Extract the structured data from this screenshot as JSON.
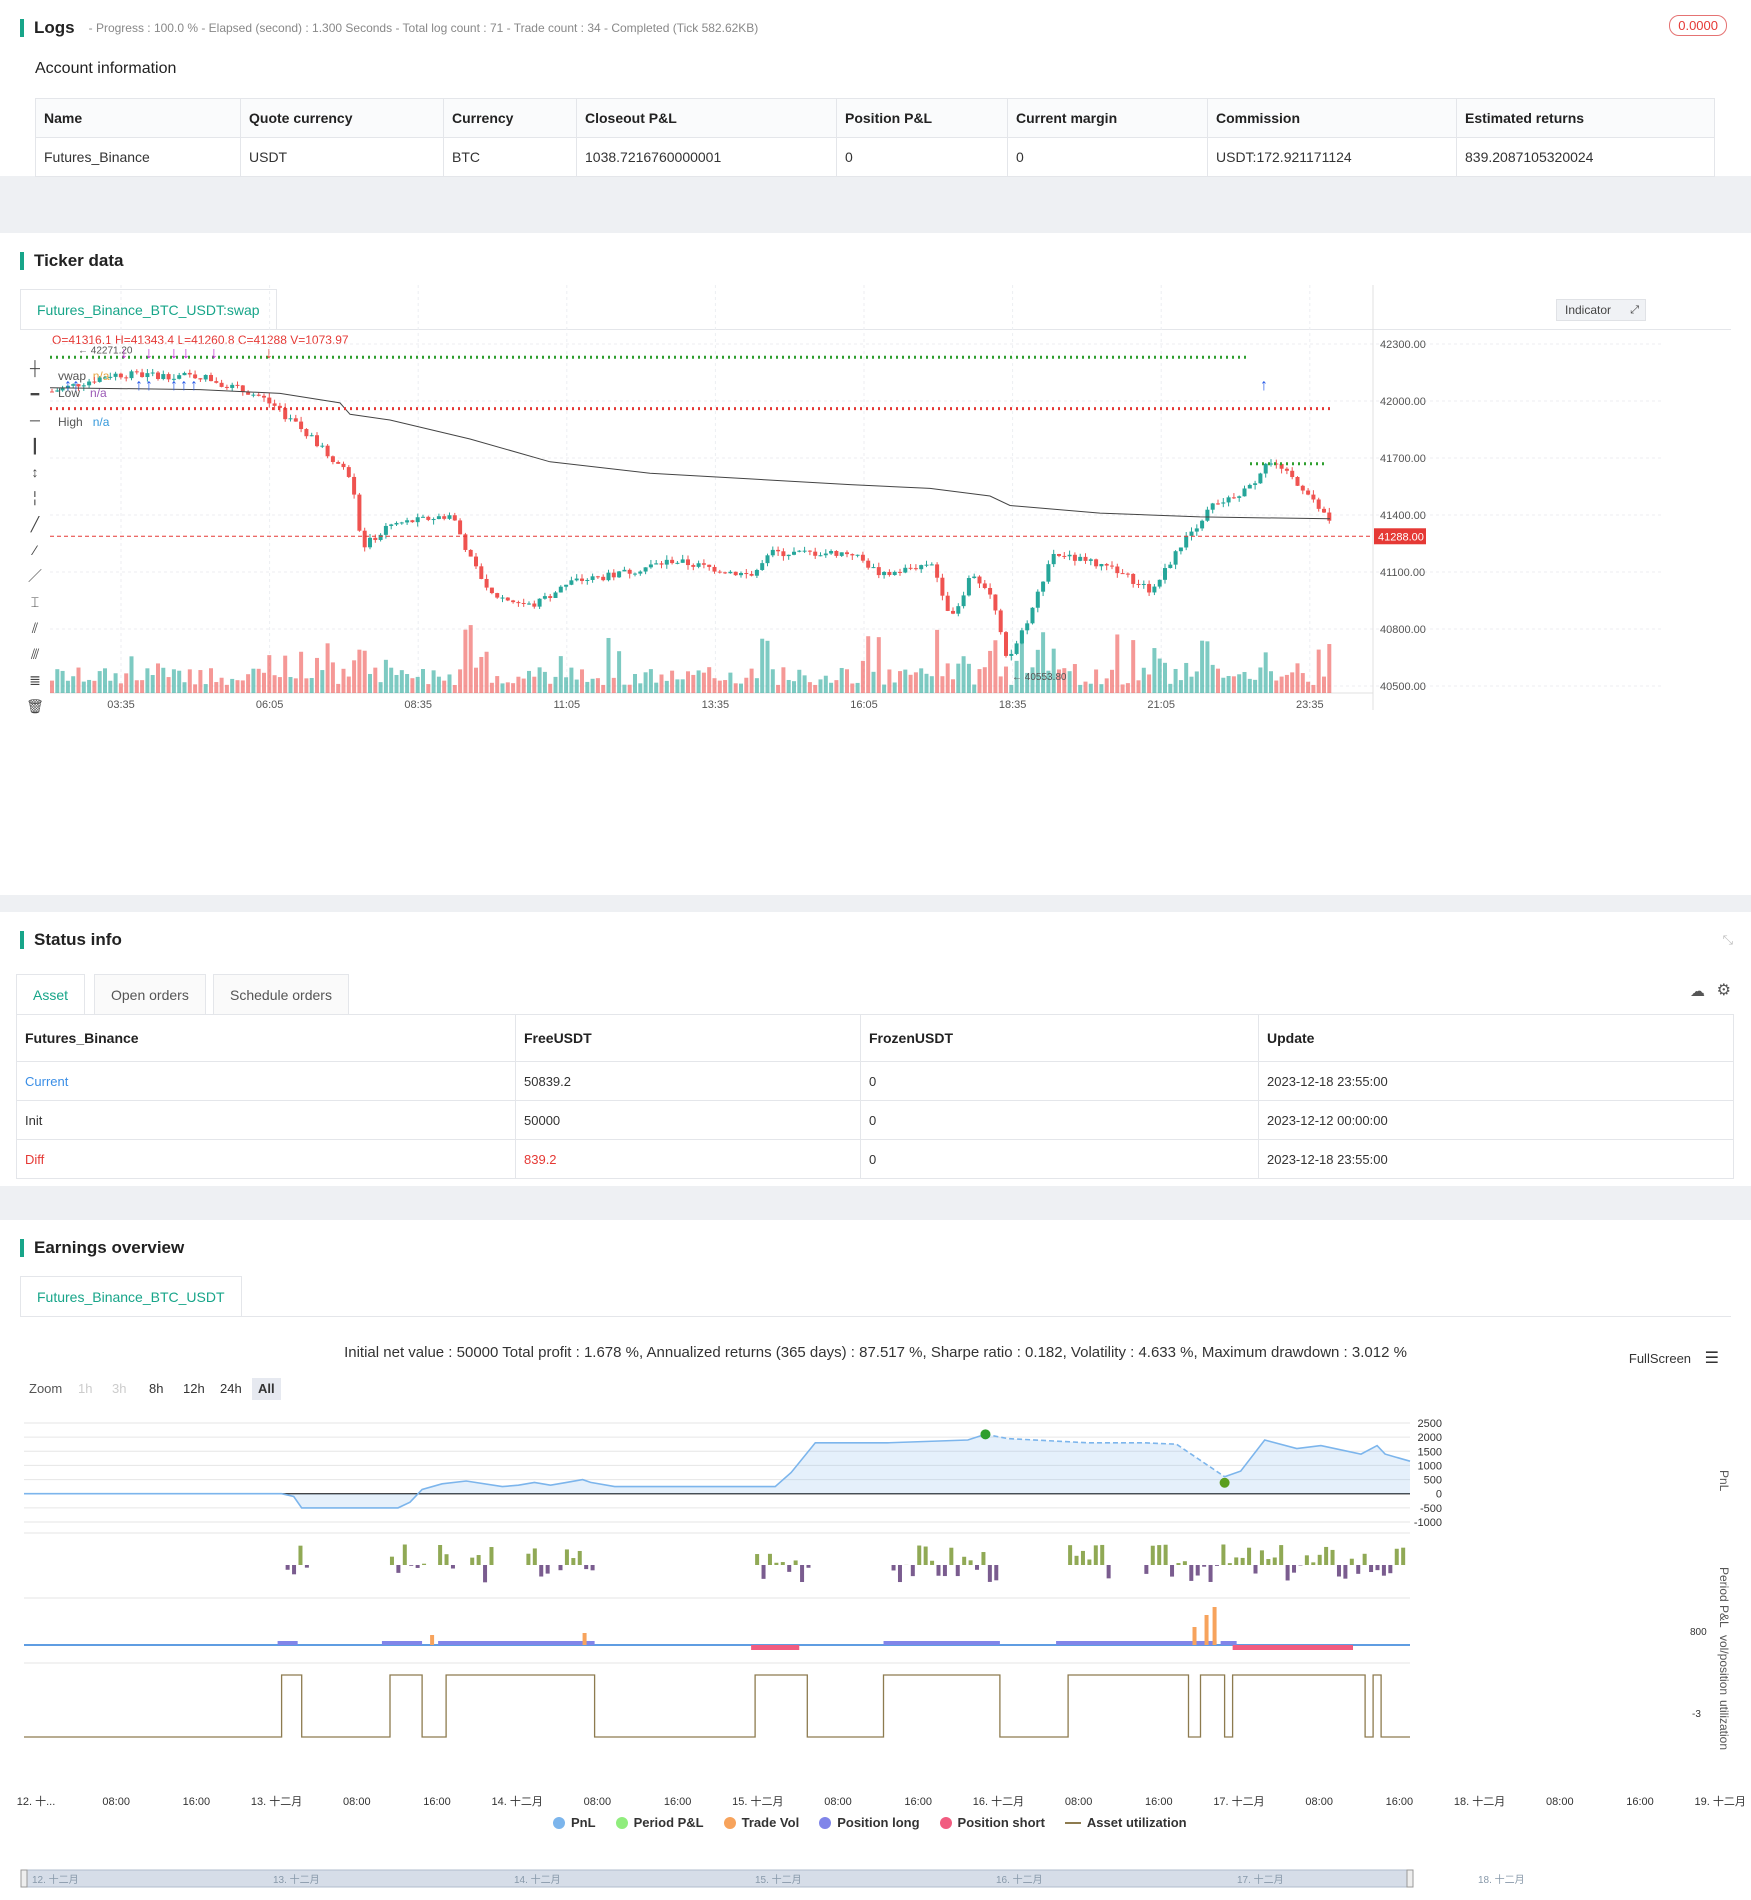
{
  "logs": {
    "title": "Logs",
    "summary": "- Progress : 100.0 % - Elapsed (second) : 1.300 Seconds - Total log count : 71 - Trade count : 34 - Completed (Tick 582.62KB)",
    "badge": "0.0000",
    "account_title": "Account information",
    "columns": [
      "Name",
      "Quote currency",
      "Currency",
      "Closeout P&L",
      "Position P&L",
      "Current margin",
      "Commission",
      "Estimated returns"
    ],
    "row": [
      "Futures_Binance",
      "USDT",
      "BTC",
      "1038.7216760000001",
      "0",
      "0",
      "USDT:172.921171124",
      "839.2087105320024"
    ]
  },
  "ticker": {
    "title": "Ticker data",
    "tab": "Futures_Binance_BTC_USDT:swap",
    "ohlc": "O=41316.1 H=41343.4 L=41260.8 C=41288 V=1073.97",
    "legend": [
      {
        "name": "vwap",
        "value": "n/a"
      },
      {
        "name": "Low",
        "value": "n/a"
      },
      {
        "name": "High",
        "value": "n/a"
      }
    ],
    "indicator_btn": "Indicator",
    "price_ticks": [
      "42300.00",
      "42000.00",
      "41700.00",
      "41400.00",
      "41100.00",
      "40800.00",
      "40500.00"
    ],
    "last_price": "41288.00",
    "time_ticks": [
      "03:35",
      "06:05",
      "08:35",
      "11:05",
      "13:35",
      "16:05",
      "18:35",
      "21:05",
      "23:35"
    ],
    "high_label": "42271.20",
    "low_label": "40553.80",
    "colors": {
      "up": "#26a69a",
      "down": "#ef5350",
      "green_line": "#2e9e2e",
      "red_line": "#e53935"
    }
  },
  "status": {
    "title": "Status info",
    "tabs": [
      "Asset",
      "Open orders",
      "Schedule orders"
    ],
    "columns": [
      "Futures_Binance",
      "FreeUSDT",
      "FrozenUSDT",
      "Update"
    ],
    "rows": [
      [
        "Current",
        "50839.2",
        "0",
        "2023-12-18 23:55:00"
      ],
      [
        "Init",
        "50000",
        "0",
        "2023-12-12 00:00:00"
      ],
      [
        "Diff",
        "839.2",
        "0",
        "2023-12-18 23:55:00"
      ]
    ]
  },
  "earnings": {
    "title": "Earnings overview",
    "tab": "Futures_Binance_BTC_USDT",
    "summary": "Initial net value : 50000 Total profit : 1.678 %, Annualized returns (365 days) : 87.517 %, Sharpe ratio : 0.182, Volatility : 4.633 %, Maximum drawdown : 3.012 %",
    "fullscreen": "FullScreen",
    "zoom_label": "Zoom",
    "zoom_buttons": [
      "1h",
      "3h",
      "8h",
      "12h",
      "24h",
      "All"
    ],
    "pnl_ticks": [
      "2500",
      "2000",
      "1500",
      "1000",
      "500",
      "0",
      "-500",
      "-1000"
    ],
    "axis_names": [
      "PnL",
      "Period P&L",
      "vol/position",
      "utilization"
    ],
    "small_ticks": [
      "800",
      "-3"
    ],
    "x_ticks": [
      "12. 十...",
      "08:00",
      "16:00",
      "13. 十二月",
      "08:00",
      "16:00",
      "14. 十二月",
      "08:00",
      "16:00",
      "15. 十二月",
      "08:00",
      "16:00",
      "16. 十二月",
      "08:00",
      "16:00",
      "17. 十二月",
      "08:00",
      "16:00",
      "18. 十二月",
      "08:00",
      "16:00",
      "19. 十二月"
    ],
    "nav_ticks": [
      "12. 十二月",
      "13. 十二月",
      "14. 十二月",
      "15. 十二月",
      "16. 十二月",
      "17. 十二月",
      "18. 十二月"
    ],
    "legend": [
      {
        "name": "PnL",
        "color": "#7cb5ec"
      },
      {
        "name": "Period P&L",
        "color": "#90ed7d"
      },
      {
        "name": "Trade Vol",
        "color": "#f7a35c"
      },
      {
        "name": "Position long",
        "color": "#8085e9"
      },
      {
        "name": "Position short",
        "color": "#f15c80"
      },
      {
        "name": "Asset utilization",
        "color": "#8d7b4f"
      }
    ]
  }
}
